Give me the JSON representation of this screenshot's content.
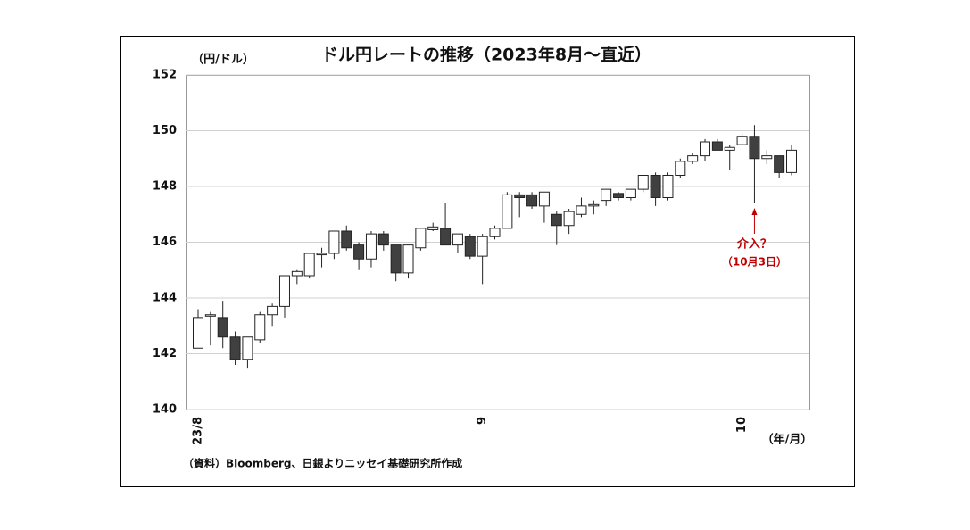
{
  "chart_data": {
    "type": "candlestick",
    "title": "ドル円レートの推移（2023年8月～直近）",
    "y_label": "（円/ドル）",
    "x_label": "（年/月）",
    "source": "（資料）Bloomberg、日銀よりニッセイ基礎研究所作成",
    "annotation": {
      "text": "介入？",
      "subtext": "（10月3日）",
      "color": "#c00000",
      "index": 45
    },
    "categories": [
      "23/8",
      null,
      null,
      null,
      null,
      null,
      null,
      null,
      null,
      null,
      null,
      null,
      null,
      null,
      null,
      null,
      null,
      null,
      null,
      null,
      null,
      null,
      null,
      "9",
      null,
      null,
      null,
      null,
      null,
      null,
      null,
      null,
      null,
      null,
      null,
      null,
      null,
      null,
      null,
      null,
      null,
      null,
      null,
      null,
      "10",
      null,
      null,
      null,
      null
    ],
    "open": [
      142.2,
      143.35,
      143.3,
      142.6,
      141.8,
      142.5,
      143.4,
      143.7,
      144.8,
      144.8,
      145.55,
      145.6,
      146.4,
      145.9,
      145.4,
      146.3,
      145.9,
      144.9,
      145.8,
      146.45,
      146.5,
      145.9,
      146.2,
      145.5,
      146.2,
      146.5,
      147.7,
      147.7,
      147.3,
      147.0,
      146.6,
      147.0,
      147.3,
      147.5,
      147.75,
      147.6,
      147.9,
      148.4,
      147.6,
      148.4,
      148.9,
      149.1,
      149.6,
      149.3,
      149.5,
      149.8,
      149.0,
      149.1,
      148.5
    ],
    "high": [
      143.6,
      143.5,
      143.9,
      142.8,
      142.6,
      143.5,
      143.8,
      144.8,
      145.0,
      145.6,
      145.8,
      146.4,
      146.6,
      146.0,
      146.4,
      146.4,
      145.9,
      145.9,
      146.5,
      146.7,
      147.4,
      146.3,
      146.3,
      146.3,
      146.6,
      147.8,
      147.8,
      147.8,
      147.8,
      147.1,
      147.2,
      147.6,
      147.5,
      147.9,
      147.8,
      147.9,
      148.4,
      148.5,
      148.5,
      149.0,
      149.2,
      149.7,
      149.7,
      149.5,
      149.9,
      150.2,
      149.3,
      149.1,
      149.5
    ],
    "low": [
      142.2,
      142.3,
      142.2,
      141.6,
      141.5,
      142.4,
      143.0,
      143.3,
      144.5,
      144.7,
      145.1,
      145.4,
      145.7,
      145.0,
      145.1,
      145.7,
      144.6,
      144.7,
      145.7,
      146.4,
      145.9,
      145.6,
      145.4,
      144.5,
      146.1,
      146.5,
      146.9,
      147.2,
      146.7,
      145.9,
      146.3,
      146.9,
      147.0,
      147.3,
      147.5,
      147.5,
      147.8,
      147.3,
      147.5,
      148.3,
      148.8,
      148.9,
      149.3,
      148.6,
      149.5,
      147.4,
      148.8,
      148.3,
      148.4
    ],
    "close": [
      143.3,
      143.4,
      142.6,
      141.8,
      142.6,
      143.4,
      143.7,
      144.8,
      144.95,
      145.6,
      145.6,
      146.4,
      145.8,
      145.4,
      146.3,
      145.9,
      144.9,
      145.9,
      146.5,
      146.55,
      145.9,
      146.3,
      145.5,
      146.2,
      146.5,
      147.7,
      147.6,
      147.3,
      147.8,
      146.6,
      147.1,
      147.3,
      147.35,
      147.9,
      147.6,
      147.9,
      148.4,
      147.6,
      148.4,
      148.9,
      149.1,
      149.6,
      149.3,
      149.4,
      149.8,
      149.0,
      149.1,
      148.5,
      149.3
    ],
    "up_color": "#ffffff",
    "down_color": "#404040",
    "edge_color": "#222222",
    "ylim": [
      140,
      152
    ],
    "yticks": [
      140,
      142,
      144,
      146,
      148,
      150,
      152
    ],
    "grid": true
  }
}
